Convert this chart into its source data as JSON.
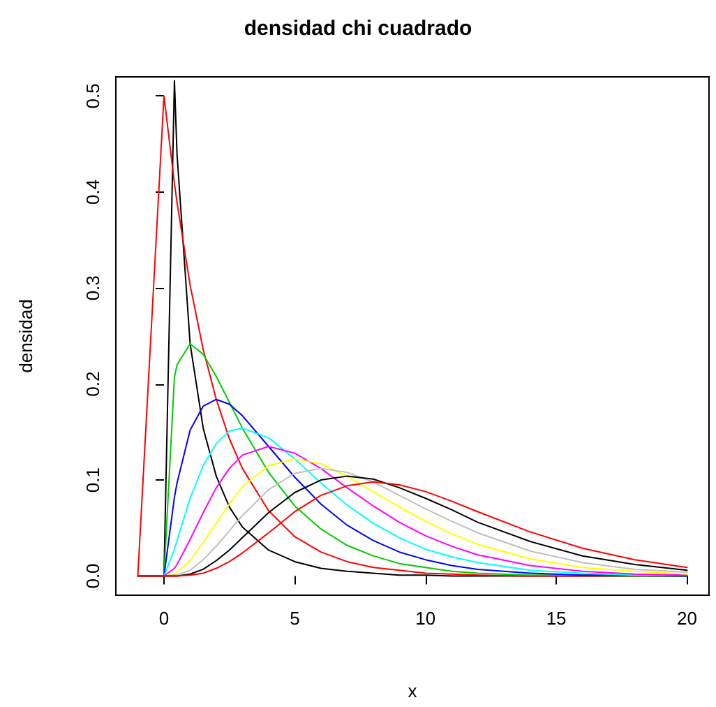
{
  "chart_data": {
    "type": "line",
    "title": "densidad chi cuadrado",
    "xlabel": "x",
    "ylabel": "densidad",
    "marker": "none",
    "line_style": "solid",
    "x": [
      -1,
      0,
      0.4,
      0.5,
      1,
      1.5,
      2,
      2.5,
      3,
      4,
      5,
      6,
      7,
      8,
      9,
      10,
      11,
      12,
      14,
      16,
      18,
      20
    ],
    "xlim": [
      -1.84,
      20.84
    ],
    "xticks": [
      0,
      5,
      10,
      15,
      20
    ],
    "ylim": [
      -0.02,
      0.52
    ],
    "yticks": [
      {
        "value": 0,
        "label": "0.0"
      },
      {
        "value": 0.1,
        "label": "0.1"
      },
      {
        "value": 0.2,
        "label": "0.2"
      },
      {
        "value": 0.3,
        "label": "0.3"
      },
      {
        "value": 0.4,
        "label": "0.4"
      },
      {
        "value": 0.5,
        "label": "0.5"
      }
    ],
    "series": [
      {
        "color": "#000000",
        "values": [
          0,
          0,
          0.516,
          0.439,
          0.242,
          0.154,
          0.104,
          0.072,
          0.051,
          0.027,
          0.015,
          0.008,
          0.005,
          0.003,
          0.001,
          0.001,
          0.0,
          0.0,
          0.0,
          0.0,
          0.0,
          0.0
        ]
      },
      {
        "color": "#ff0000",
        "values": [
          0,
          0.5,
          0.409,
          0.389,
          0.303,
          0.236,
          0.184,
          0.143,
          0.112,
          0.068,
          0.041,
          0.025,
          0.015,
          0.009,
          0.006,
          0.003,
          0.002,
          0.001,
          0.0,
          0.0,
          0.0,
          0.0
        ]
      },
      {
        "color": "#00cd00",
        "values": [
          0,
          0,
          0.207,
          0.22,
          0.242,
          0.231,
          0.208,
          0.181,
          0.154,
          0.108,
          0.073,
          0.049,
          0.032,
          0.021,
          0.013,
          0.009,
          0.005,
          0.003,
          0.001,
          0.001,
          0.0,
          0.0
        ]
      },
      {
        "color": "#0000ff",
        "values": [
          0,
          0,
          0.082,
          0.097,
          0.152,
          0.177,
          0.184,
          0.179,
          0.167,
          0.135,
          0.103,
          0.075,
          0.053,
          0.037,
          0.025,
          0.017,
          0.011,
          0.007,
          0.003,
          0.001,
          0.001,
          0.0
        ]
      },
      {
        "color": "#00ffff",
        "values": [
          0,
          0,
          0.028,
          0.037,
          0.081,
          0.115,
          0.138,
          0.151,
          0.154,
          0.144,
          0.122,
          0.097,
          0.074,
          0.055,
          0.04,
          0.028,
          0.02,
          0.014,
          0.006,
          0.003,
          0.001,
          0.001
        ]
      },
      {
        "color": "#ff00ff",
        "values": [
          0,
          0,
          0.008,
          0.012,
          0.038,
          0.066,
          0.092,
          0.112,
          0.126,
          0.135,
          0.128,
          0.112,
          0.092,
          0.073,
          0.056,
          0.042,
          0.031,
          0.022,
          0.011,
          0.005,
          0.002,
          0.001
        ]
      },
      {
        "color": "#ffff00",
        "values": [
          0,
          0,
          0.002,
          0.004,
          0.016,
          0.035,
          0.055,
          0.075,
          0.093,
          0.115,
          0.122,
          0.117,
          0.104,
          0.088,
          0.072,
          0.057,
          0.044,
          0.033,
          0.018,
          0.009,
          0.005,
          0.002
        ]
      },
      {
        "color": "#bebebe",
        "values": [
          0,
          0,
          0.001,
          0.001,
          0.006,
          0.017,
          0.031,
          0.047,
          0.063,
          0.09,
          0.107,
          0.112,
          0.108,
          0.098,
          0.084,
          0.07,
          0.057,
          0.045,
          0.026,
          0.014,
          0.007,
          0.004
        ]
      },
      {
        "color": "#000000",
        "values": [
          0,
          0,
          0.0,
          0.0,
          0.002,
          0.007,
          0.016,
          0.027,
          0.04,
          0.066,
          0.087,
          0.1,
          0.104,
          0.101,
          0.092,
          0.081,
          0.069,
          0.056,
          0.036,
          0.021,
          0.012,
          0.006
        ]
      },
      {
        "color": "#ff0000",
        "values": [
          0,
          0,
          0.0,
          0.0,
          0.001,
          0.003,
          0.008,
          0.015,
          0.024,
          0.045,
          0.067,
          0.084,
          0.094,
          0.098,
          0.095,
          0.088,
          0.078,
          0.067,
          0.046,
          0.029,
          0.017,
          0.009
        ]
      }
    ]
  }
}
